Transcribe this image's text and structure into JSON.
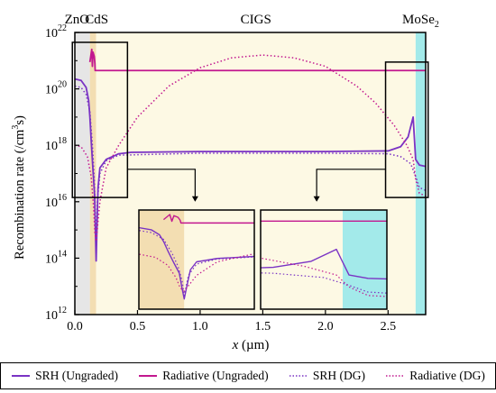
{
  "chart_data": {
    "type": "line",
    "xlabel_var": "x",
    "xlabel_unit": " (µm)",
    "ylabel": "Recombination rate (/cm",
    "ylabel_sup": "3",
    "ylabel_end": "s)",
    "xlim": [
      0,
      2.8
    ],
    "ylim_exp": [
      12,
      22
    ],
    "log_y": true,
    "x_ticks": [
      "0.0",
      "0.5",
      "1.0",
      "1.5",
      "2.0",
      "2.5"
    ],
    "y_ticks": [
      {
        "base": "10",
        "exp": "12"
      },
      {
        "base": "10",
        "exp": "14"
      },
      {
        "base": "10",
        "exp": "16"
      },
      {
        "base": "10",
        "exp": "18"
      },
      {
        "base": "10",
        "exp": "20"
      },
      {
        "base": "10",
        "exp": "22"
      }
    ],
    "layers": [
      {
        "label": "ZnO",
        "from": 0.0,
        "to": 0.12,
        "color": "#e6e6e6"
      },
      {
        "label": "CdS",
        "from": 0.12,
        "to": 0.17,
        "color": "#f3deb2"
      },
      {
        "label": "CIGS",
        "from": 0.17,
        "to": 2.72,
        "color": "#fdf9e4"
      },
      {
        "label": "MoSe",
        "sub": "2",
        "from": 2.72,
        "to": 2.8,
        "color": "#a3eaea"
      }
    ],
    "series": [
      {
        "name": "SRH (Ungraded)",
        "color": "#7a33c4",
        "style": "solid",
        "points": [
          [
            0.0,
            20.35
          ],
          [
            0.05,
            20.3
          ],
          [
            0.09,
            20.05
          ],
          [
            0.11,
            19.6
          ],
          [
            0.12,
            19.0
          ],
          [
            0.13,
            18.2
          ],
          [
            0.145,
            17.1
          ],
          [
            0.158,
            16.2
          ],
          [
            0.165,
            14.8
          ],
          [
            0.17,
            13.9
          ],
          [
            0.175,
            14.8
          ],
          [
            0.185,
            16.5
          ],
          [
            0.2,
            17.2
          ],
          [
            0.25,
            17.5
          ],
          [
            0.35,
            17.7
          ],
          [
            0.45,
            17.75
          ],
          [
            1.0,
            17.78
          ],
          [
            2.0,
            17.78
          ],
          [
            2.5,
            17.8
          ],
          [
            2.6,
            17.95
          ],
          [
            2.66,
            18.3
          ],
          [
            2.7,
            19.0
          ],
          [
            2.72,
            17.5
          ],
          [
            2.75,
            17.3
          ],
          [
            2.8,
            17.25
          ]
        ]
      },
      {
        "name": "Radiative (Ungraded)",
        "color": "#c2188f",
        "style": "solid",
        "points": [
          [
            0.12,
            20.95
          ],
          [
            0.135,
            21.4
          ],
          [
            0.14,
            20.8
          ],
          [
            0.145,
            21.3
          ],
          [
            0.155,
            21.15
          ],
          [
            0.16,
            20.9
          ],
          [
            0.162,
            20.65
          ],
          [
            2.72,
            20.65
          ],
          [
            2.75,
            20.65
          ],
          [
            2.8,
            20.65
          ]
        ]
      },
      {
        "name": "SRH (DG)",
        "color": "#7a33c4",
        "style": "dotted",
        "points": [
          [
            0.0,
            20.1
          ],
          [
            0.05,
            20.05
          ],
          [
            0.09,
            19.8
          ],
          [
            0.12,
            19.2
          ],
          [
            0.14,
            18.0
          ],
          [
            0.155,
            16.8
          ],
          [
            0.165,
            15.5
          ],
          [
            0.17,
            14.2
          ],
          [
            0.18,
            16.0
          ],
          [
            0.2,
            17.0
          ],
          [
            0.25,
            17.45
          ],
          [
            0.35,
            17.65
          ],
          [
            1.0,
            17.72
          ],
          [
            2.0,
            17.72
          ],
          [
            2.5,
            17.7
          ],
          [
            2.6,
            17.6
          ],
          [
            2.68,
            17.35
          ],
          [
            2.72,
            16.9
          ],
          [
            2.75,
            16.5
          ],
          [
            2.8,
            16.4
          ]
        ]
      },
      {
        "name": "Radiative (DG)",
        "color": "#c2188f",
        "style": "dotted",
        "points": [
          [
            0.0,
            18.0
          ],
          [
            0.05,
            17.95
          ],
          [
            0.1,
            17.6
          ],
          [
            0.13,
            16.9
          ],
          [
            0.15,
            15.8
          ],
          [
            0.16,
            14.9
          ],
          [
            0.17,
            14.6
          ],
          [
            0.2,
            16.0
          ],
          [
            0.25,
            17.2
          ],
          [
            0.35,
            18.0
          ],
          [
            0.5,
            19.0
          ],
          [
            0.75,
            20.1
          ],
          [
            1.0,
            20.75
          ],
          [
            1.25,
            21.1
          ],
          [
            1.5,
            21.2
          ],
          [
            1.75,
            21.1
          ],
          [
            2.0,
            20.8
          ],
          [
            2.25,
            20.1
          ],
          [
            2.4,
            19.5
          ],
          [
            2.55,
            18.7
          ],
          [
            2.65,
            18.0
          ],
          [
            2.7,
            17.5
          ],
          [
            2.72,
            16.8
          ],
          [
            2.75,
            16.3
          ],
          [
            2.8,
            16.2
          ]
        ]
      }
    ],
    "legend": [
      "SRH (Ungraded)",
      "Radiative (Ungraded)",
      "SRH (DG)",
      "Radiative (DG)"
    ],
    "legend_position": "bottom",
    "insets": [
      "zoom of CdS/CIGS interface",
      "zoom of CIGS/MoSe2 interface"
    ]
  }
}
